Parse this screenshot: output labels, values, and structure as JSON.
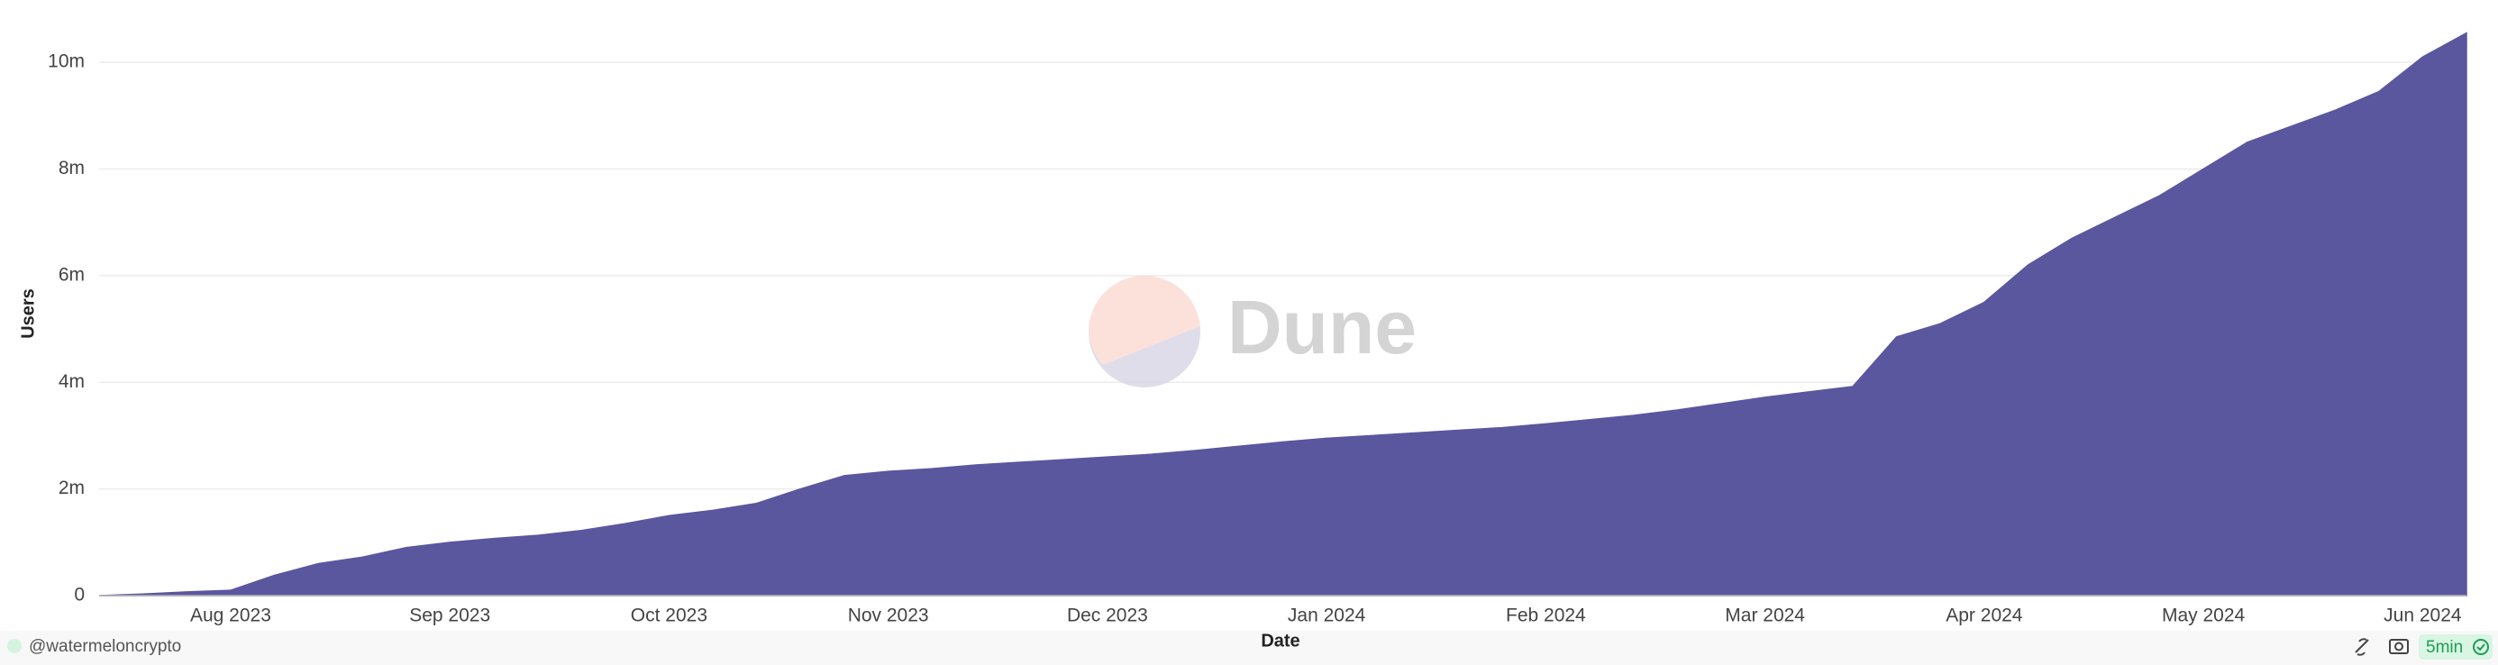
{
  "chart_data": {
    "type": "area",
    "x_label": "Date",
    "y_label": "Users",
    "categories": [
      null,
      null,
      null,
      "Aug 2023",
      null,
      null,
      null,
      null,
      "Sep 2023",
      null,
      null,
      null,
      null,
      "Oct 2023",
      null,
      null,
      null,
      null,
      "Nov 2023",
      null,
      null,
      null,
      null,
      "Dec 2023",
      null,
      null,
      null,
      null,
      "Jan 2024",
      null,
      null,
      null,
      null,
      "Feb 2024",
      null,
      null,
      null,
      null,
      "Mar 2024",
      null,
      null,
      null,
      null,
      "Apr 2024",
      null,
      null,
      null,
      null,
      "May 2024",
      null,
      null,
      null,
      null,
      "Jun 2024",
      null
    ],
    "values": [
      0,
      30000,
      70000,
      100000,
      380000,
      600000,
      720000,
      900000,
      1000000,
      1070000,
      1130000,
      1220000,
      1350000,
      1500000,
      1600000,
      1730000,
      2000000,
      2250000,
      2330000,
      2380000,
      2450000,
      2500000,
      2550000,
      2600000,
      2650000,
      2720000,
      2800000,
      2880000,
      2950000,
      3000000,
      3050000,
      3100000,
      3150000,
      3220000,
      3300000,
      3380000,
      3480000,
      3600000,
      3720000,
      3820000,
      3920000,
      4850000,
      5100000,
      5500000,
      6200000,
      6700000,
      7100000,
      7500000,
      8000000,
      8500000,
      8800000,
      9100000,
      9450000,
      10100000,
      10550000
    ],
    "color": "#5a579e",
    "ylim": [
      0,
      11000000
    ],
    "yticks": [
      0,
      {
        "value": 2000000,
        "label": "2m"
      },
      {
        "value": 4000000,
        "label": "4m"
      },
      {
        "value": 6000000,
        "label": "6m"
      },
      {
        "value": 8000000,
        "label": "8m"
      },
      {
        "value": 10000000,
        "label": "10m"
      }
    ],
    "grid": true
  },
  "watermark": "Dune",
  "footer": {
    "author": "@watermeloncrypto",
    "refresh": "5min"
  }
}
